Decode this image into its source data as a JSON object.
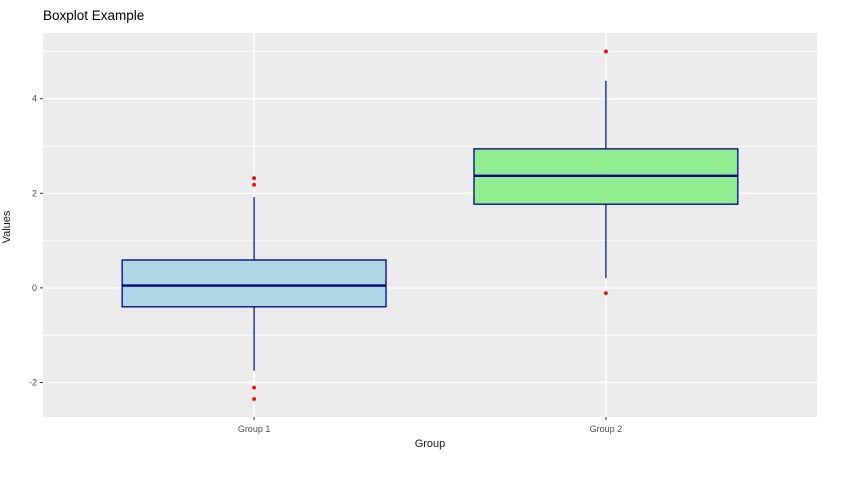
{
  "chart_data": {
    "type": "boxplot",
    "title": "Boxplot Example",
    "xlabel": "Group",
    "ylabel": "Values",
    "categories": [
      "Group 1",
      "Group 2"
    ],
    "ylim": [
      -2.73,
      5.39
    ],
    "y_axis": {
      "major_ticks": [
        -2,
        0,
        2,
        4
      ],
      "tick_labels": [
        "-2",
        "0",
        "2",
        "4"
      ],
      "minor_ticks": [
        -1,
        1,
        3,
        5
      ]
    },
    "grid": {
      "horizontal_major": true,
      "horizontal_minor": true,
      "vertical_major_at_categories": true
    },
    "legend": "none",
    "series": [
      {
        "name": "Group 1",
        "lower_whisker": -1.75,
        "q1": -0.4,
        "median": 0.05,
        "q3": 0.59,
        "upper_whisker": 1.92,
        "outliers": [
          2.32,
          2.18,
          -2.11,
          -2.35
        ],
        "fill": "#ADD8E6"
      },
      {
        "name": "Group 2",
        "lower_whisker": 0.21,
        "q1": 1.77,
        "median": 2.37,
        "q3": 2.94,
        "upper_whisker": 4.38,
        "outliers": [
          5.0,
          -0.11
        ],
        "fill": "#90EE90"
      }
    ],
    "colors": {
      "panel_background": "#EBEBEB",
      "grid_major": "#FFFFFF",
      "grid_minor": "#FFFFFF",
      "box_border": "#00008B",
      "median_line": "#00008B",
      "whisker": "#00008B",
      "outlier": "#FF0000",
      "tick_mark": "#333333",
      "tick_text": "#4D4D4D",
      "title_text": "#000000"
    }
  }
}
